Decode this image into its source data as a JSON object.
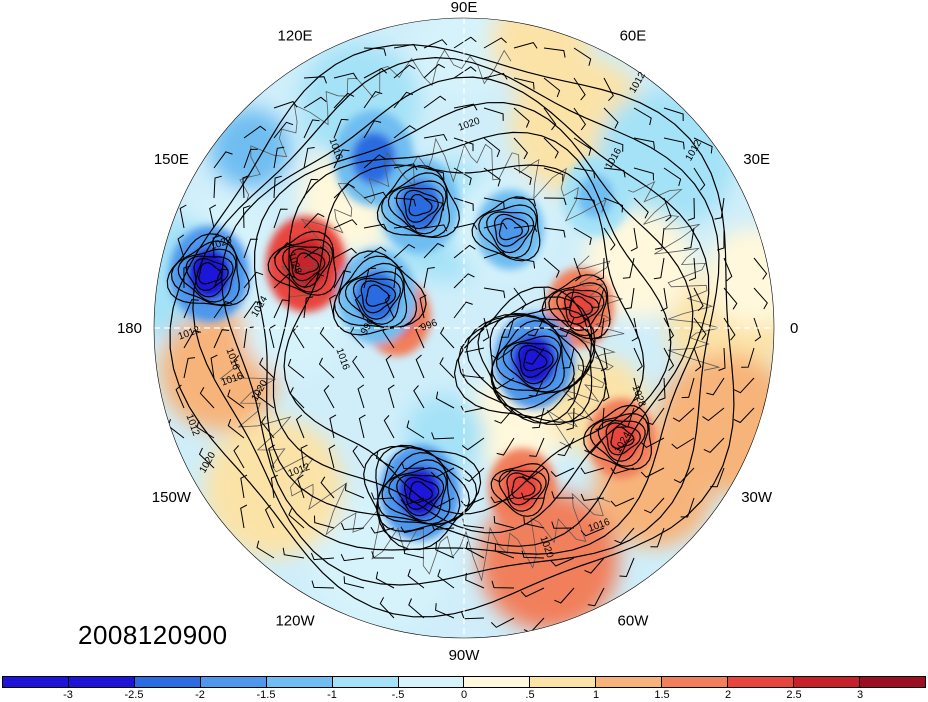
{
  "map": {
    "projection": "polar-stereographic-north",
    "timestamp": "2008120900",
    "longitude_labels": [
      {
        "text": "90E",
        "lon": 90
      },
      {
        "text": "60E",
        "lon": 60
      },
      {
        "text": "30E",
        "lon": 30
      },
      {
        "text": "0",
        "lon": 0
      },
      {
        "text": "30W",
        "lon": -30
      },
      {
        "text": "60W",
        "lon": -60
      },
      {
        "text": "90W",
        "lon": -90
      },
      {
        "text": "120W",
        "lon": -120
      },
      {
        "text": "150W",
        "lon": -150
      },
      {
        "text": "180",
        "lon": 180
      },
      {
        "text": "150E",
        "lon": 150
      },
      {
        "text": "120E",
        "lon": 120
      }
    ],
    "isobar_labels": [
      "1012",
      "1020",
      "1016",
      "1012",
      "1020",
      "1028",
      "1024",
      "1016",
      "1012",
      "1020",
      "1012",
      "1016",
      "996",
      "996",
      "1028",
      "1024",
      "1016",
      "1020",
      "1020",
      "1012",
      "1016",
      "1016"
    ],
    "anomaly_centers": [
      {
        "sign": "positive",
        "value": 2.5,
        "location": "western Bering / Okhotsk"
      },
      {
        "sign": "positive",
        "value": 2.0,
        "location": "Arctic Ocean near Siberia"
      },
      {
        "sign": "positive",
        "value": 2.0,
        "location": "Greenland / Norwegian Sea"
      },
      {
        "sign": "positive",
        "value": 2.0,
        "location": "North Atlantic"
      },
      {
        "sign": "positive",
        "value": 2.0,
        "location": "Northeast United States"
      },
      {
        "sign": "negative",
        "value": -3.0,
        "location": "Gulf of Alaska"
      },
      {
        "sign": "negative",
        "value": -2.5,
        "location": "East Siberia / Yakutia"
      },
      {
        "sign": "negative",
        "value": -2.5,
        "location": "Central Asia"
      },
      {
        "sign": "negative",
        "value": -2.5,
        "location": "Canadian Arctic"
      },
      {
        "sign": "negative",
        "value": -3.0,
        "location": "Baffin / Labrador"
      },
      {
        "sign": "negative",
        "value": -3.0,
        "location": "Hudson Bay region"
      },
      {
        "sign": "negative",
        "value": -2.0,
        "location": "Kara / Barents Sea"
      },
      {
        "sign": "negative",
        "value": -1.5,
        "location": "Western Siberia"
      }
    ]
  },
  "colorbar": {
    "tick_labels": [
      "-3",
      "-2.5",
      "-2",
      "-1.5",
      "-1",
      "-.5",
      "0",
      ".5",
      "1",
      "1.5",
      "2",
      "2.5",
      "3"
    ],
    "colors": [
      "#1d14d8",
      "#2b6ce0",
      "#4d97ec",
      "#6fbdf1",
      "#a4e2f7",
      "#d6f3fb",
      "#fff8dc",
      "#fbe3a8",
      "#f7b47a",
      "#f17f5b",
      "#e8453e",
      "#c8202b",
      "#9c0e22"
    ]
  }
}
